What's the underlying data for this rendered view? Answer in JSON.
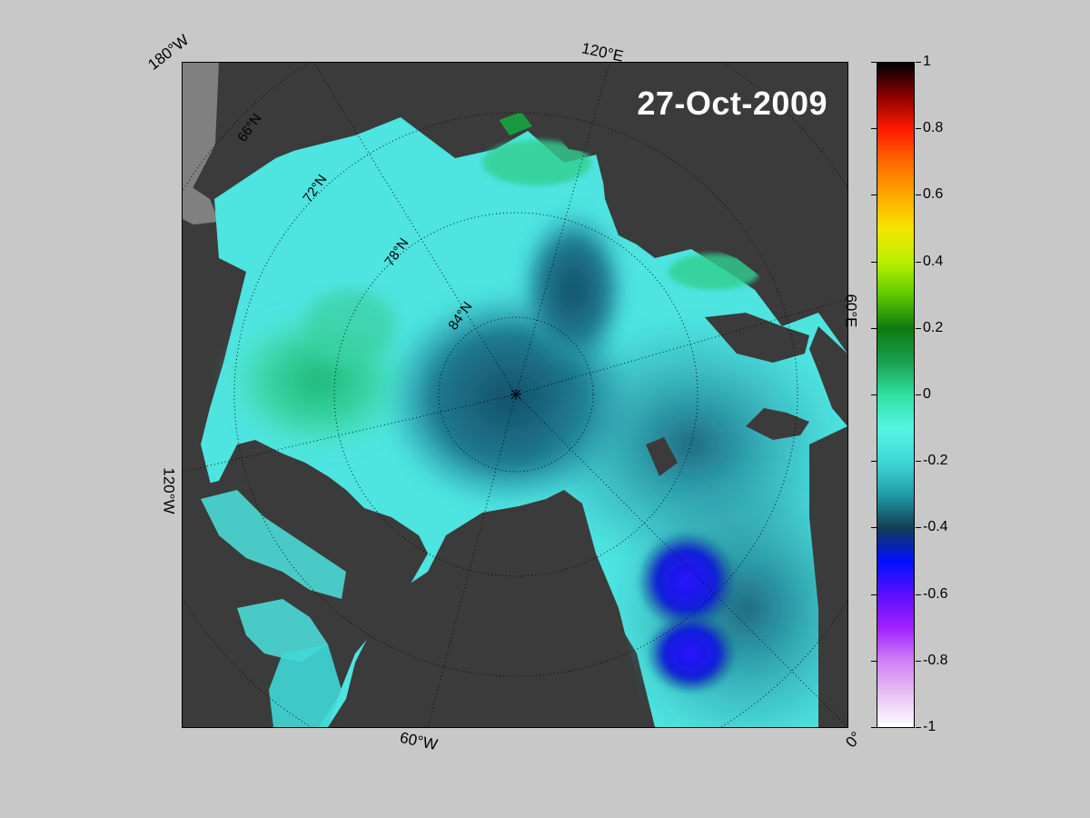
{
  "map": {
    "date": "27-Oct-2009",
    "projection_center": "North Pole",
    "longitude_labels": [
      "180°W",
      "120°E",
      "60°E",
      "0°",
      "60°W",
      "120°W"
    ],
    "latitude_labels": [
      "66°N",
      "72°N",
      "78°N",
      "84°N"
    ],
    "land_color": "#3b3b3b",
    "missing_color": "#808080"
  },
  "colorbar": {
    "ticks": [
      "1",
      "0.8",
      "0.6",
      "0.4",
      "0.2",
      "0",
      "-0.2",
      "-0.4",
      "-0.6",
      "-0.8",
      "-1"
    ],
    "range": [
      -1,
      1
    ],
    "colors": [
      {
        "value": 1,
        "color": "#000000"
      },
      {
        "value": 0.9,
        "color": "#8a0000"
      },
      {
        "value": 0.8,
        "color": "#ff1a00"
      },
      {
        "value": 0.7,
        "color": "#ff6a00"
      },
      {
        "value": 0.6,
        "color": "#ffa800"
      },
      {
        "value": 0.5,
        "color": "#f5e600"
      },
      {
        "value": 0.4,
        "color": "#b9f000"
      },
      {
        "value": 0.3,
        "color": "#5cc800"
      },
      {
        "value": 0.2,
        "color": "#0f7a0f"
      },
      {
        "value": 0.1,
        "color": "#1aa050"
      },
      {
        "value": 0,
        "color": "#30e0a0"
      },
      {
        "value": -0.1,
        "color": "#55f5e5"
      },
      {
        "value": -0.2,
        "color": "#40d8d8"
      },
      {
        "value": -0.3,
        "color": "#209ca8"
      },
      {
        "value": -0.4,
        "color": "#123e52"
      },
      {
        "value": -0.5,
        "color": "#0010ff"
      },
      {
        "value": -0.6,
        "color": "#5a10ff"
      },
      {
        "value": -0.7,
        "color": "#a020ff"
      },
      {
        "value": -0.8,
        "color": "#d080f5"
      },
      {
        "value": -0.9,
        "color": "#e8c0f5"
      },
      {
        "value": -1,
        "color": "#ffffff"
      }
    ]
  }
}
